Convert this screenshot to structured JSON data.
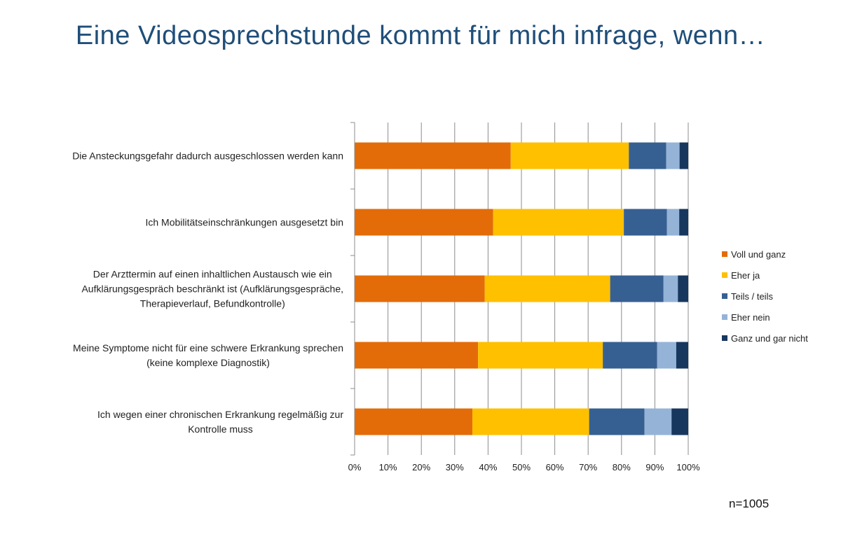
{
  "title": "Eine Videosprechstunde kommt für mich infrage, wenn…",
  "note": "n=1005",
  "chart_data": {
    "type": "bar",
    "orientation": "horizontal",
    "stacked": "percent",
    "categories": [
      [
        "Die Ansteckungsgefahr dadurch ausgeschlossen werden kann"
      ],
      [
        "Ich Mobilitätseinschränkungen ausgesetzt bin"
      ],
      [
        "Der Arzttermin auf einen inhaltlichen Austausch wie ein",
        "Aufklärungsgespräch beschränkt ist (Aufklärungsgespräche,",
        "Therapieverlauf, Befundkontrolle)"
      ],
      [
        "Meine Symptome nicht für eine schwere Erkrankung sprechen",
        "(keine komplexe Diagnostik)"
      ],
      [
        "Ich wegen einer chronischen Erkrankung regelmäßig zur",
        "Kontrolle muss"
      ]
    ],
    "series": [
      {
        "name": "Voll und ganz",
        "color": "#e36c09",
        "values": [
          46.8,
          41.5,
          39.0,
          37.0,
          35.3
        ]
      },
      {
        "name": "Eher ja",
        "color": "#ffc000",
        "values": [
          35.4,
          39.2,
          37.6,
          37.4,
          35.0
        ]
      },
      {
        "name": "Teils / teils",
        "color": "#376092",
        "values": [
          11.2,
          12.9,
          16.0,
          16.3,
          16.6
        ]
      },
      {
        "name": "Eher nein",
        "color": "#95b3d7",
        "values": [
          4.0,
          3.7,
          4.3,
          5.7,
          8.1
        ]
      },
      {
        "name": "Ganz und gar nicht",
        "color": "#17375e",
        "values": [
          2.6,
          2.7,
          3.1,
          3.6,
          5.0
        ]
      }
    ],
    "xlim": [
      0,
      100
    ],
    "xticks": [
      "0%",
      "10%",
      "20%",
      "30%",
      "40%",
      "50%",
      "60%",
      "70%",
      "80%",
      "90%",
      "100%"
    ],
    "grid": true,
    "legend": "right"
  }
}
